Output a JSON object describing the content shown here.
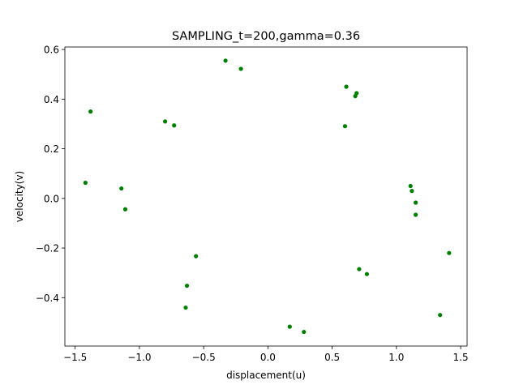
{
  "chart_data": {
    "type": "scatter",
    "title": "SAMPLING_t=200,gamma=0.36",
    "xlabel": "displacement(u)",
    "ylabel": "velocity(v)",
    "xlim": [
      -1.58,
      1.55
    ],
    "ylim": [
      -0.595,
      0.61
    ],
    "xticks": [
      -1.5,
      -1.0,
      -0.5,
      0.0,
      0.5,
      1.0,
      1.5
    ],
    "xtick_labels": [
      "−1.5",
      "−1.0",
      "−0.5",
      "0.0",
      "0.5",
      "1.0",
      "1.5"
    ],
    "yticks": [
      -0.4,
      -0.2,
      0.0,
      0.2,
      0.4,
      0.6
    ],
    "ytick_labels": [
      "−0.4",
      "−0.2",
      "0.0",
      "0.2",
      "0.4",
      "0.6"
    ],
    "grid": false,
    "marker_color": "#008000",
    "points": [
      {
        "x": -0.33,
        "y": 0.555
      },
      {
        "x": -0.21,
        "y": 0.522
      },
      {
        "x": 0.61,
        "y": 0.45
      },
      {
        "x": 0.69,
        "y": 0.424
      },
      {
        "x": 0.68,
        "y": 0.412
      },
      {
        "x": 0.6,
        "y": 0.291
      },
      {
        "x": -1.38,
        "y": 0.35
      },
      {
        "x": -0.8,
        "y": 0.31
      },
      {
        "x": -0.73,
        "y": 0.294
      },
      {
        "x": -1.42,
        "y": 0.063
      },
      {
        "x": -1.14,
        "y": 0.04
      },
      {
        "x": -1.11,
        "y": -0.044
      },
      {
        "x": 1.11,
        "y": 0.05
      },
      {
        "x": 1.12,
        "y": 0.03
      },
      {
        "x": 1.15,
        "y": -0.017
      },
      {
        "x": 1.15,
        "y": -0.066
      },
      {
        "x": 1.41,
        "y": -0.22
      },
      {
        "x": -0.56,
        "y": -0.233
      },
      {
        "x": 0.71,
        "y": -0.285
      },
      {
        "x": 0.77,
        "y": -0.305
      },
      {
        "x": -0.63,
        "y": -0.352
      },
      {
        "x": -0.64,
        "y": -0.44
      },
      {
        "x": 1.34,
        "y": -0.47
      },
      {
        "x": 0.17,
        "y": -0.517
      },
      {
        "x": 0.28,
        "y": -0.538
      }
    ]
  }
}
